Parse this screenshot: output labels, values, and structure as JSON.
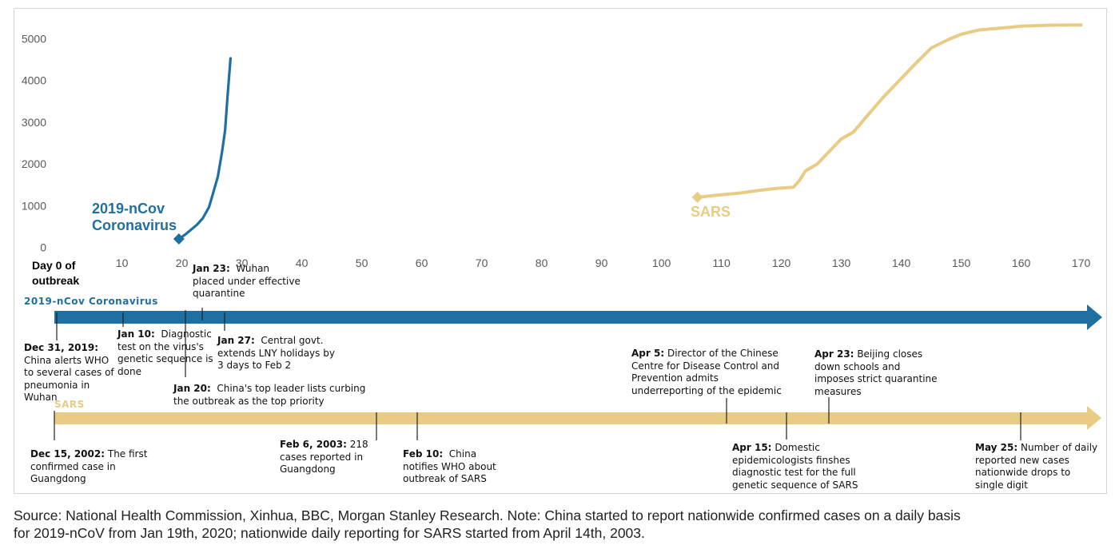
{
  "chart_data": {
    "type": "line",
    "ylim": [
      0,
      5000
    ],
    "yticks": [
      0,
      1000,
      2000,
      3000,
      4000,
      5000
    ],
    "xlim": [
      0,
      170
    ],
    "xticks": [
      10,
      20,
      30,
      40,
      50,
      60,
      70,
      80,
      90,
      100,
      110,
      120,
      130,
      140,
      150,
      160,
      170
    ],
    "x_origin_label_line1": "Day 0 of",
    "x_origin_label_line2": "outbreak",
    "series": [
      {
        "name_line1": "2019-nCov",
        "name_line2": "Coronavirus",
        "color": "#1f6fa1",
        "marker": "diamond-start",
        "points": [
          [
            19.5,
            200
          ],
          [
            20.5,
            300
          ],
          [
            21.5,
            420
          ],
          [
            22.5,
            540
          ],
          [
            23.5,
            700
          ],
          [
            24.5,
            960
          ],
          [
            25,
            1200
          ],
          [
            26,
            1700
          ],
          [
            26.7,
            2300
          ],
          [
            27.2,
            2800
          ],
          [
            27.6,
            3600
          ],
          [
            28.1,
            4530
          ]
        ]
      },
      {
        "name": "SARS",
        "color": "#e8cc84",
        "marker": "diamond-start",
        "points": [
          [
            106,
            1200
          ],
          [
            110,
            1260
          ],
          [
            113,
            1300
          ],
          [
            116,
            1360
          ],
          [
            119,
            1410
          ],
          [
            122,
            1440
          ],
          [
            123,
            1600
          ],
          [
            124,
            1830
          ],
          [
            126,
            2000
          ],
          [
            128,
            2300
          ],
          [
            130,
            2600
          ],
          [
            132,
            2760
          ],
          [
            134,
            3100
          ],
          [
            137,
            3600
          ],
          [
            140,
            4050
          ],
          [
            142,
            4350
          ],
          [
            145,
            4780
          ],
          [
            148,
            4990
          ],
          [
            150,
            5110
          ],
          [
            153,
            5210
          ],
          [
            157,
            5260
          ],
          [
            160,
            5300
          ],
          [
            165,
            5325
          ],
          [
            170,
            5330
          ]
        ]
      }
    ]
  },
  "timeline": {
    "ncov": {
      "label": "2019-nCov Coronavirus",
      "color": "#1f6fa1",
      "events": [
        {
          "date": "Dec 31, 2019:",
          "text": [
            "China alerts WHO",
            "to several cases of",
            "pneumonia in",
            "Wuhan"
          ]
        },
        {
          "date": "Jan 10:",
          "text": [
            "Diagnostic",
            "test on the virus's",
            "genetic sequence is",
            "done"
          ]
        },
        {
          "date": "Jan 20:",
          "text": [
            "China's top leader lists curbing",
            "the outbreak as the top priority"
          ]
        },
        {
          "date": "Jan 23:",
          "text": [
            "Wuhan",
            "placed under effective",
            "quarantine"
          ]
        },
        {
          "date": "Jan 27:",
          "text": [
            "Central govt.",
            "extends LNY holidays by",
            "3 days to Feb 2"
          ]
        }
      ]
    },
    "sars": {
      "label": "SARS",
      "color": "#e8cc84",
      "events": [
        {
          "date": "Dec 15, 2002:",
          "text": [
            "The first",
            "confirmed case in",
            "Guangdong"
          ]
        },
        {
          "date": "Feb 6, 2003:",
          "text": [
            "218",
            "cases reported in",
            "Guangdong"
          ]
        },
        {
          "date": "Feb 10:",
          "text": [
            "China",
            "notifies WHO about",
            "outbreak of SARS"
          ]
        },
        {
          "date": "Apr 5:",
          "text": [
            "Director of the Chinese",
            "Centre for Disease Control and",
            "Prevention admits",
            "underreporting of the epidemic"
          ]
        },
        {
          "date": "Apr 15:",
          "text": [
            "Domestic",
            "epidemicologists finshes",
            "diagnostic test for the full",
            "genetic sequence of SARS"
          ]
        },
        {
          "date": "Apr 23:",
          "text": [
            "Beijing closes",
            "down schools and",
            "imposes strict quarantine",
            "measures"
          ]
        },
        {
          "date": "May 25:",
          "text": [
            "Number of daily",
            "reported new cases",
            "nationwide drops to",
            "single digit"
          ]
        }
      ]
    }
  },
  "source": {
    "line1": "Source: National Health Commission, Xinhua, BBC, Morgan Stanley Research. Note: China started to report nationwide confirmed cases on a daily basis",
    "line2": "for 2019-nCoV from Jan 19th, 2020; nationwide daily reporting for SARS started from April 14th, 2003."
  }
}
